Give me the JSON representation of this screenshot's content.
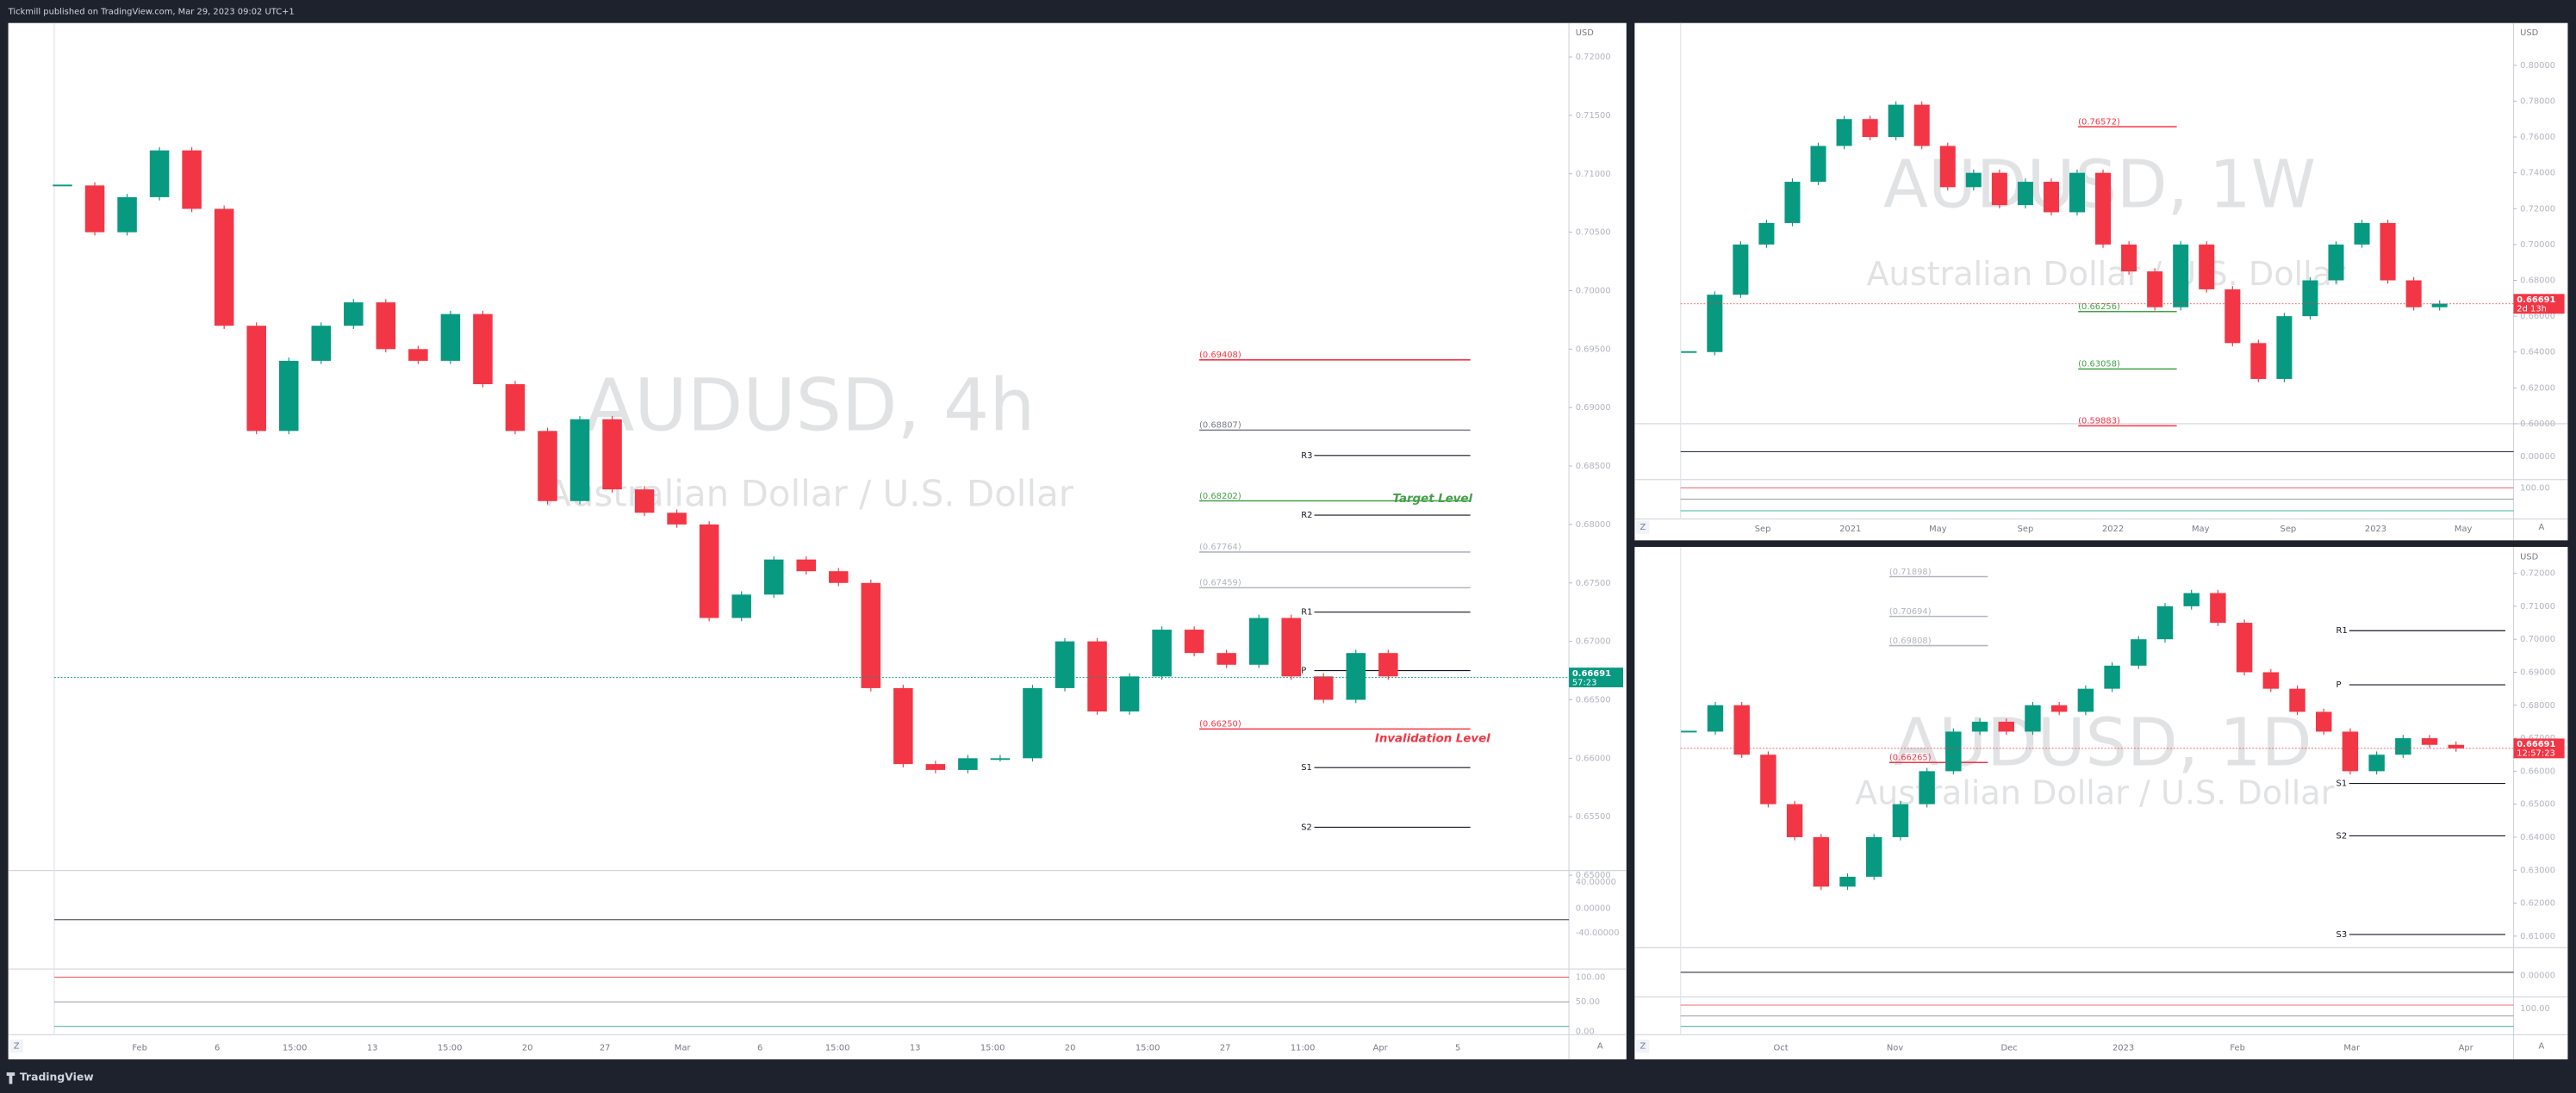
{
  "header": {
    "text": "Tickmill published on TradingView.com, Mar 29, 2023 09:02 UTC+1"
  },
  "footer": {
    "brand": "TradingView"
  },
  "panels": [
    {
      "symbol": "AUDUSD, 4h",
      "description": "Australian Dollar / U.S. Dollar",
      "currency": "USD",
      "ylim": [
        0.6504,
        0.7229
      ],
      "yticks": [
        {
          "value": 0.72,
          "label": "0.72000"
        },
        {
          "value": 0.715,
          "label": "0.71500"
        },
        {
          "value": 0.71,
          "label": "0.71000"
        },
        {
          "value": 0.705,
          "label": "0.70500"
        },
        {
          "value": 0.7,
          "label": "0.70000"
        },
        {
          "value": 0.695,
          "label": "0.69500"
        },
        {
          "value": 0.69,
          "label": "0.69000"
        },
        {
          "value": 0.685,
          "label": "0.68500"
        },
        {
          "value": 0.68,
          "label": "0.68000"
        },
        {
          "value": 0.675,
          "label": "0.67500"
        },
        {
          "value": 0.67,
          "label": "0.67000"
        },
        {
          "value": 0.665,
          "label": "0.66500"
        },
        {
          "value": 0.66,
          "label": "0.66000"
        },
        {
          "value": 0.655,
          "label": "0.65500"
        },
        {
          "value": 0.65,
          "label": "0.65000"
        }
      ],
      "xticks": [
        "Feb",
        "6",
        "15:00",
        "13",
        "15:00",
        "20",
        "27",
        "Mar",
        "6",
        "15:00",
        "13",
        "15:00",
        "20",
        "15:00",
        "27",
        "11:00",
        "Apr",
        "5"
      ],
      "closes": [
        0.709,
        0.705,
        0.708,
        0.712,
        0.707,
        0.697,
        0.688,
        0.694,
        0.697,
        0.699,
        0.695,
        0.694,
        0.698,
        0.692,
        0.688,
        0.682,
        0.689,
        0.683,
        0.681,
        0.68,
        0.672,
        0.674,
        0.677,
        0.676,
        0.675,
        0.666,
        0.6595,
        0.659,
        0.66,
        0.66,
        0.666,
        0.67,
        0.664,
        0.667,
        0.671,
        0.669,
        0.668,
        0.672,
        0.667,
        0.665,
        0.669,
        0.667
      ],
      "levels": [
        {
          "label": "(0.69408)",
          "value": 0.69408,
          "color": "#f23645"
        },
        {
          "label": "(0.68807)",
          "value": 0.68807,
          "color": "#787b86"
        },
        {
          "label": "(0.68202)",
          "value": 0.68202,
          "color": "#43a047"
        },
        {
          "label": "(0.67764)",
          "value": 0.67764,
          "color": "#b2b5be"
        },
        {
          "label": "(0.67459)",
          "value": 0.67459,
          "color": "#b2b5be"
        },
        {
          "label": "(0.66250)",
          "value": 0.6625,
          "color": "#f23645"
        }
      ],
      "pivots": [
        {
          "label": "R3",
          "value": 0.6859
        },
        {
          "label": "R2",
          "value": 0.6808
        },
        {
          "label": "R1",
          "value": 0.6725
        },
        {
          "label": "P",
          "value": 0.6675
        },
        {
          "label": "S1",
          "value": 0.6592
        },
        {
          "label": "S2",
          "value": 0.6541
        }
      ],
      "annotations": [
        {
          "text": "Target Level",
          "value": 0.6822,
          "color": "#43a047"
        },
        {
          "text": "Invalidation Level",
          "value": 0.6617,
          "color": "#f23645"
        }
      ],
      "price": {
        "value": 0.66691,
        "countdown": "57:23",
        "color": "#089981"
      },
      "osc_labels": [
        "40.00000",
        "0.00000",
        "-40.00000",
        "100.00",
        "50.00",
        "0.00"
      ],
      "controls": [
        "Z",
        "A"
      ]
    },
    {
      "symbol": "AUDUSD, 1W",
      "description": "Australian Dollar / U.S. Dollar",
      "currency": "USD",
      "ylim": [
        0.6,
        0.8236
      ],
      "yticks": [
        {
          "value": 0.8,
          "label": "0.80000"
        },
        {
          "value": 0.78,
          "label": "0.78000"
        },
        {
          "value": 0.76,
          "label": "0.76000"
        },
        {
          "value": 0.74,
          "label": "0.74000"
        },
        {
          "value": 0.72,
          "label": "0.72000"
        },
        {
          "value": 0.7,
          "label": "0.70000"
        },
        {
          "value": 0.68,
          "label": "0.68000"
        },
        {
          "value": 0.66,
          "label": "0.66000"
        },
        {
          "value": 0.64,
          "label": "0.64000"
        },
        {
          "value": 0.62,
          "label": "0.62000"
        },
        {
          "value": 0.6,
          "label": "0.60000"
        }
      ],
      "xticks": [
        "Sep",
        "2021",
        "May",
        "Sep",
        "2022",
        "May",
        "Sep",
        "2023",
        "May"
      ],
      "closes": [
        0.64,
        0.672,
        0.7,
        0.712,
        0.735,
        0.755,
        0.77,
        0.76,
        0.778,
        0.755,
        0.732,
        0.74,
        0.722,
        0.735,
        0.718,
        0.74,
        0.7,
        0.685,
        0.665,
        0.7,
        0.675,
        0.645,
        0.625,
        0.66,
        0.68,
        0.7,
        0.712,
        0.68,
        0.665,
        0.667
      ],
      "levels": [
        {
          "label": "(0.76572)",
          "value": 0.76572,
          "color": "#f23645"
        },
        {
          "label": "(0.66256)",
          "value": 0.66256,
          "color": "#43a047"
        },
        {
          "label": "(0.63058)",
          "value": 0.63058,
          "color": "#43a047"
        },
        {
          "label": "(0.59883)",
          "value": 0.59883,
          "color": "#f23645"
        }
      ],
      "pivots": [],
      "annotations": [],
      "price": {
        "value": 0.66691,
        "countdown": "2d 13h",
        "color": "#f23645"
      },
      "osc_labels": [
        "0.00000",
        "100.00"
      ],
      "controls": [
        "Z",
        "A"
      ]
    },
    {
      "symbol": "AUDUSD, 1D",
      "description": "Australian Dollar / U.S. Dollar",
      "currency": "USD",
      "ylim": [
        0.6065,
        0.728
      ],
      "yticks": [
        {
          "value": 0.72,
          "label": "0.72000"
        },
        {
          "value": 0.71,
          "label": "0.71000"
        },
        {
          "value": 0.7,
          "label": "0.70000"
        },
        {
          "value": 0.69,
          "label": "0.69000"
        },
        {
          "value": 0.68,
          "label": "0.68000"
        },
        {
          "value": 0.67,
          "label": "0.67000"
        },
        {
          "value": 0.66,
          "label": "0.66000"
        },
        {
          "value": 0.65,
          "label": "0.65000"
        },
        {
          "value": 0.64,
          "label": "0.64000"
        },
        {
          "value": 0.63,
          "label": "0.63000"
        },
        {
          "value": 0.62,
          "label": "0.62000"
        },
        {
          "value": 0.61,
          "label": "0.61000"
        }
      ],
      "xticks": [
        "Oct",
        "Nov",
        "Dec",
        "2023",
        "Feb",
        "Mar",
        "Apr"
      ],
      "closes": [
        0.672,
        0.68,
        0.665,
        0.65,
        0.64,
        0.625,
        0.628,
        0.64,
        0.65,
        0.66,
        0.672,
        0.675,
        0.672,
        0.68,
        0.678,
        0.685,
        0.692,
        0.7,
        0.71,
        0.714,
        0.705,
        0.69,
        0.685,
        0.678,
        0.672,
        0.66,
        0.665,
        0.67,
        0.668,
        0.6669
      ],
      "levels": [
        {
          "label": "(0.71898)",
          "value": 0.71898,
          "color": "#b2b5be"
        },
        {
          "label": "(0.70694)",
          "value": 0.70694,
          "color": "#b2b5be"
        },
        {
          "label": "(0.69808)",
          "value": 0.69808,
          "color": "#b2b5be"
        },
        {
          "label": "(0.66265)",
          "value": 0.66265,
          "color": "#f23645"
        }
      ],
      "pivots": [
        {
          "label": "R1",
          "value": 0.7026
        },
        {
          "label": "P",
          "value": 0.6862
        },
        {
          "label": "S1",
          "value": 0.6563
        },
        {
          "label": "S2",
          "value": 0.6404
        },
        {
          "label": "S3",
          "value": 0.6105
        }
      ],
      "annotations": [],
      "price": {
        "value": 0.66691,
        "countdown": "12:57:23",
        "color": "#f23645"
      },
      "osc_labels": [
        "0.00000",
        "100.00"
      ],
      "controls": [
        "Z",
        "A"
      ]
    }
  ]
}
